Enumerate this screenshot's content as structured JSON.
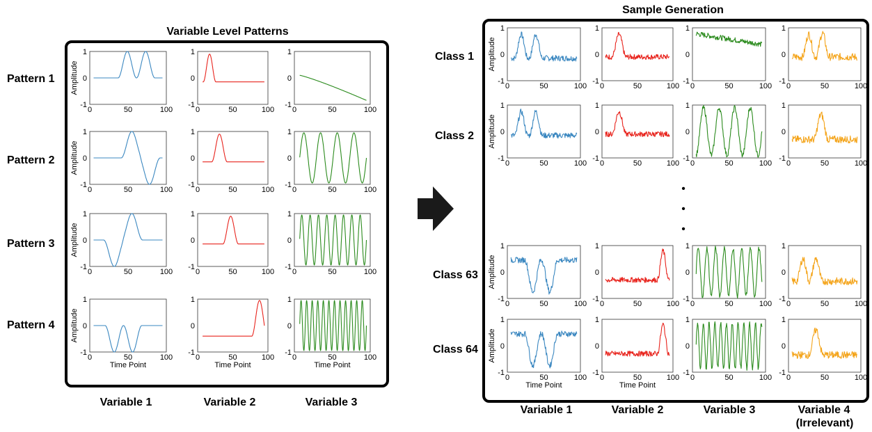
{
  "left_panel": {
    "title": "Variable Level Patterns",
    "rows": [
      "Pattern 1",
      "Pattern 2",
      "Pattern 3",
      "Pattern 4"
    ],
    "columns": [
      "Variable 1",
      "Variable 2",
      "Variable 3"
    ]
  },
  "right_panel": {
    "title": "Sample Generation",
    "rows": [
      "Class 1",
      "Class 2",
      "Class 63",
      "Class 64"
    ],
    "columns": [
      "Variable 1",
      "Variable 2",
      "Variable 3",
      "Variable 4",
      "(Irrelevant)"
    ],
    "ellipsis": "•"
  },
  "axes": {
    "ylabel": "Amplitude",
    "xlabel": "Time Point",
    "y_ticks": [
      "1",
      "0",
      "-1"
    ],
    "x_ticks": [
      "0",
      "50",
      "100"
    ],
    "xlim": [
      0,
      100
    ],
    "ylim": [
      -1,
      1
    ]
  },
  "colors": {
    "variable_1": "#3a87c0",
    "variable_2": "#e8231c",
    "variable_3": "#2a8a1c",
    "variable_4": "#f4a41a"
  },
  "arrow_icon": "right-arrow-icon",
  "chart_data": {
    "type": "line",
    "left_panel_patterns": [
      {
        "pattern": "Pattern 1",
        "variable_1": "two positive humps (~50, ~75)",
        "variable_2": "single positive hump (~18)",
        "variable_3": "decaying curve from 0.1 to -0.85"
      },
      {
        "pattern": "Pattern 2",
        "variable_1": "positive hump (~55) then negative dip (~75)",
        "variable_2": "single positive hump (~32)",
        "variable_3": "sinusoid, ~4 cycles"
      },
      {
        "pattern": "Pattern 3",
        "variable_1": "negative dip (~33) then positive hump (~55)",
        "variable_2": "single positive hump (~47)",
        "variable_3": "sinusoid, ~8 cycles"
      },
      {
        "pattern": "Pattern 4",
        "variable_1": "two negative dips (~32, ~55)",
        "variable_2": "single positive hump (~88)",
        "variable_3": "sinusoid, ~12 cycles"
      }
    ],
    "right_panel_classes": [
      {
        "class": "Class 1",
        "variable_1": "noisy pattern 1",
        "variable_2": "noisy pattern 1",
        "variable_3": "noisy pattern 1",
        "variable_4": "noisy two humps"
      },
      {
        "class": "Class 2",
        "variable_1": "noisy pattern 1",
        "variable_2": "noisy pattern 1",
        "variable_3": "noisy pattern 2",
        "variable_4": "noisy single hump"
      },
      {
        "class": "Class 63",
        "variable_1": "noisy pattern 4",
        "variable_2": "noisy pattern 4",
        "variable_3": "noisy pattern 3",
        "variable_4": "noisy two humps"
      },
      {
        "class": "Class 64",
        "variable_1": "noisy pattern 4",
        "variable_2": "noisy pattern 4",
        "variable_3": "noisy pattern 4",
        "variable_4": "noisy single hump"
      }
    ]
  }
}
